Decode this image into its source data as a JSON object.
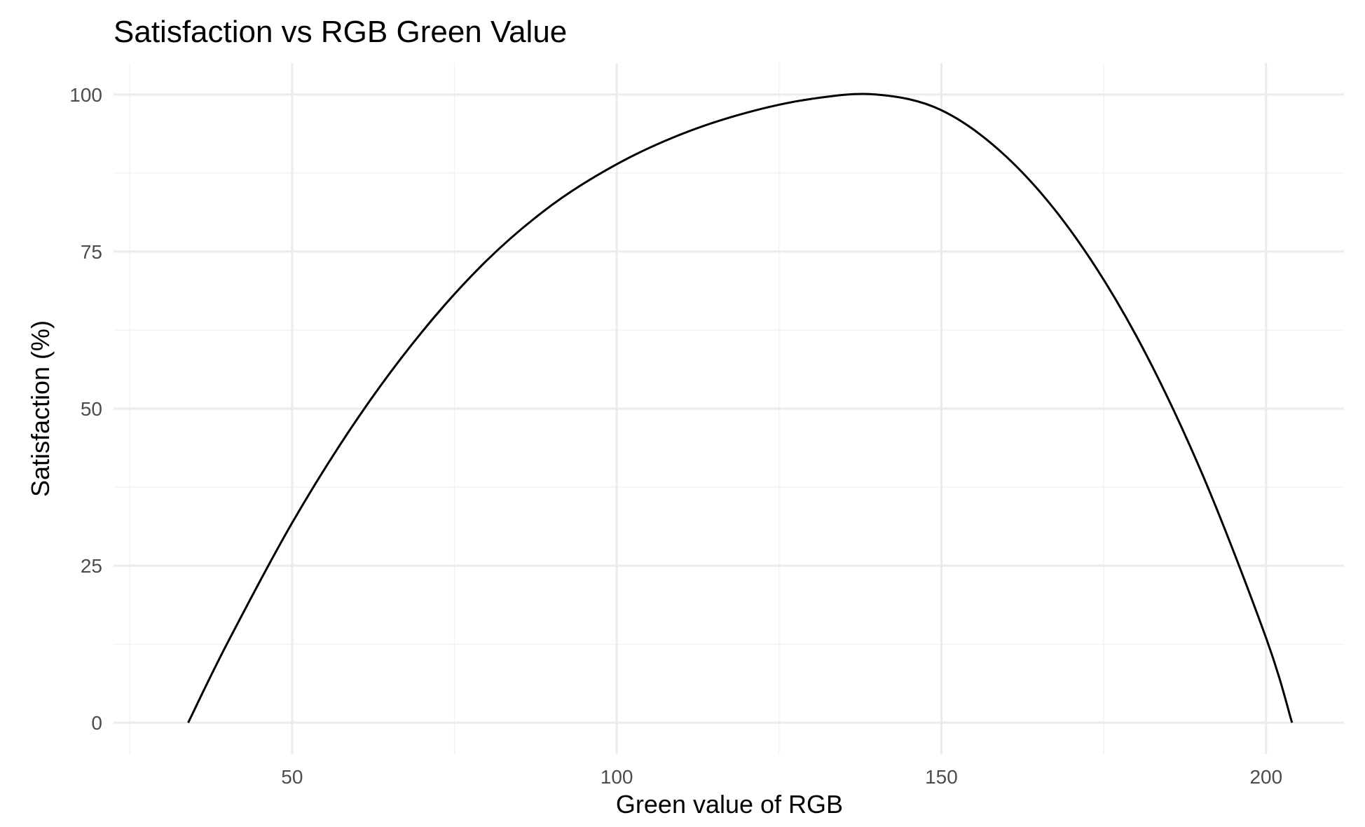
{
  "chart_data": {
    "type": "line",
    "title": "Satisfaction vs RGB Green Value",
    "xlabel": "Green value of RGB",
    "ylabel": "Satisfaction (%)",
    "xlim": [
      22.5,
      212
    ],
    "ylim": [
      -5,
      105
    ],
    "x_ticks": [
      50,
      100,
      150,
      200
    ],
    "y_ticks": [
      0,
      25,
      50,
      75,
      100
    ],
    "x_minor_ticks": [
      25,
      75,
      125,
      175
    ],
    "y_minor_ticks": [
      12.5,
      37.5,
      62.5,
      87.5
    ],
    "grid": true,
    "legend": "none",
    "colors": {
      "line": "#000000",
      "grid_major": "#ebebeb",
      "grid_minor": "#f2f2f2",
      "tick_label": "#4d4d4d"
    },
    "series": [
      {
        "x": [
          34,
          40,
          50,
          60,
          70,
          80,
          90,
          100,
          110,
          120,
          130,
          140,
          150,
          160,
          170,
          180,
          190,
          200,
          204
        ],
        "values": [
          0,
          12.6,
          31.8,
          48.3,
          62.2,
          73.6,
          82.4,
          88.9,
          93.7,
          97.1,
          99.3,
          100,
          97.5,
          90.1,
          78.2,
          61.6,
          40.0,
          13.5,
          0
        ]
      }
    ]
  }
}
